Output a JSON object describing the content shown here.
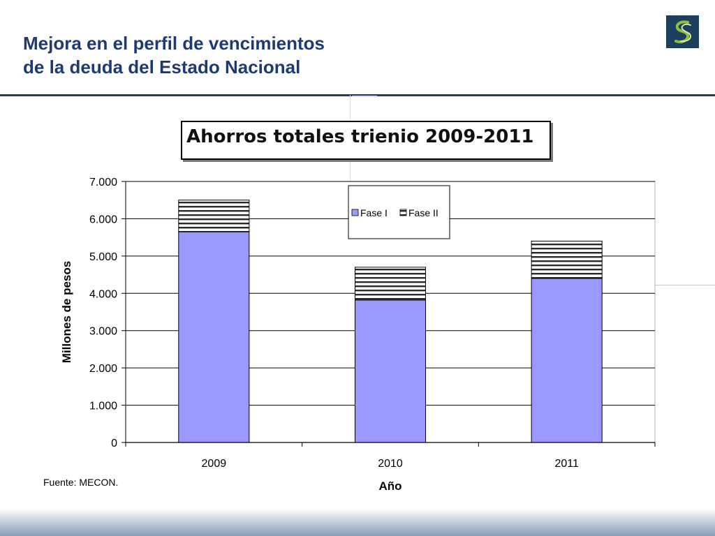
{
  "slide": {
    "title_line1": "Mejora en el perfil de vencimientos",
    "title_line2": "de la deuda del Estado Nacional",
    "source": "Fuente: MECON."
  },
  "colors": {
    "title": "#1f3a73",
    "fase1": "#9999ff",
    "logo_bg": "#1c3f5e",
    "logo_mark": "#8fbf3a"
  },
  "icons": {
    "logo": "s-swirl-logo-icon"
  },
  "chart_data": {
    "type": "bar",
    "stacked": true,
    "title": "Ahorros totales trienio 2009-2011",
    "xlabel": "Año",
    "ylabel": "Millones de pesos",
    "categories": [
      "2009",
      "2010",
      "2011"
    ],
    "series": [
      {
        "name": "Fase I",
        "values": [
          5650,
          3820,
          4400
        ],
        "color": "#9999ff",
        "pattern": "solid"
      },
      {
        "name": "Fase II",
        "values": [
          850,
          880,
          1000
        ],
        "color": "#ffffff",
        "pattern": "horizontal-lines"
      }
    ],
    "ylim": [
      0,
      7000
    ],
    "yticks": [
      0,
      1000,
      2000,
      3000,
      4000,
      5000,
      6000,
      7000
    ],
    "ytick_labels": [
      "0",
      "1.000",
      "2.000",
      "3.000",
      "4.000",
      "5.000",
      "6.000",
      "7.000"
    ],
    "grid": true,
    "legend_position": "top-center"
  }
}
